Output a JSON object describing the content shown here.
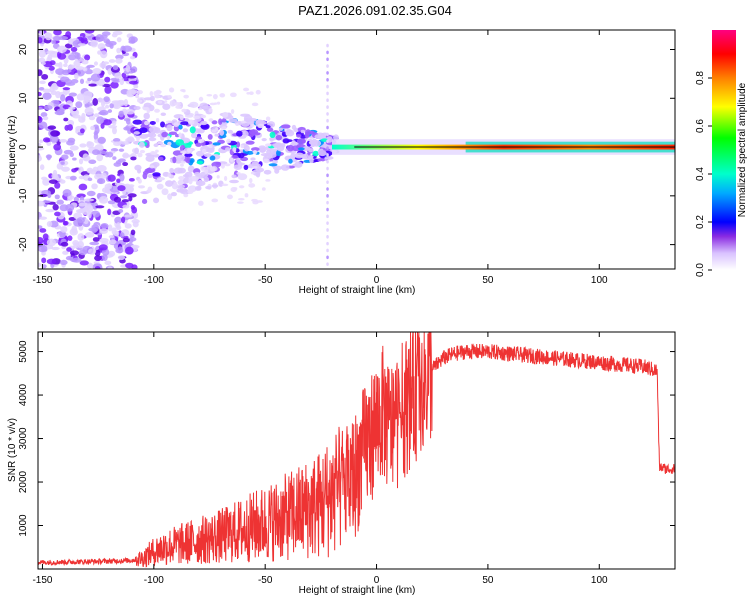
{
  "title": "PAZ1.2026.091.02.35.G04",
  "chart_data": [
    {
      "type": "heatmap",
      "name": "spectrogram",
      "xlabel": "Height of straight line (km)",
      "ylabel": "Frequency (Hz)",
      "xlim": [
        -152,
        134
      ],
      "ylim": [
        -25,
        24
      ],
      "x_ticks": [
        -150,
        -100,
        -50,
        0,
        50,
        100
      ],
      "y_ticks": [
        -20,
        -10,
        0,
        10,
        20
      ],
      "colorbar": {
        "label": "Normalized spectral amplitude",
        "range": [
          0,
          1
        ],
        "ticks": [
          0.0,
          0.2,
          0.4,
          0.6,
          0.8
        ],
        "colors": [
          "#ffffff",
          "#c9a8ff",
          "#6a00ff",
          "#0000ff",
          "#00ffff",
          "#00ff00",
          "#ffff00",
          "#ff8000",
          "#ff0000",
          "#ff0080"
        ]
      },
      "features": {
        "tone_line_frequency_hz": 0,
        "noise_region_km": [
          -152,
          -108
        ],
        "artifact_vertical_km": -22
      }
    },
    {
      "type": "line",
      "name": "snr",
      "xlabel": "Height of straight line (km)",
      "ylabel": "SNR (10 * v/v)",
      "xlim": [
        -152,
        134
      ],
      "ylim": [
        0,
        5450
      ],
      "x_ticks": [
        -150,
        -100,
        -50,
        0,
        50,
        100
      ],
      "y_ticks": [
        1000,
        2000,
        3000,
        4000,
        5000
      ],
      "color": "#ee3333",
      "series": [
        {
          "name": "SNR",
          "x": [
            -152,
            -140,
            -130,
            -120,
            -110,
            -105,
            -100,
            -95,
            -90,
            -80,
            -70,
            -60,
            -50,
            -40,
            -30,
            -25,
            -20,
            -15,
            -10,
            -8,
            -5,
            -2,
            0,
            3,
            6,
            10,
            15,
            20,
            25,
            30,
            35,
            40,
            50,
            60,
            70,
            80,
            90,
            100,
            110,
            120,
            126,
            127,
            130,
            134
          ],
          "y": [
            150,
            160,
            170,
            180,
            200,
            250,
            400,
            500,
            550,
            650,
            750,
            900,
            1050,
            1200,
            1400,
            1500,
            1700,
            1900,
            2100,
            2400,
            2800,
            3100,
            3400,
            3600,
            3200,
            3500,
            3900,
            4300,
            4600,
            4850,
            4950,
            5000,
            5000,
            4950,
            4900,
            4850,
            4800,
            4750,
            4700,
            4650,
            4550,
            2350,
            2300,
            2300
          ]
        }
      ]
    }
  ]
}
